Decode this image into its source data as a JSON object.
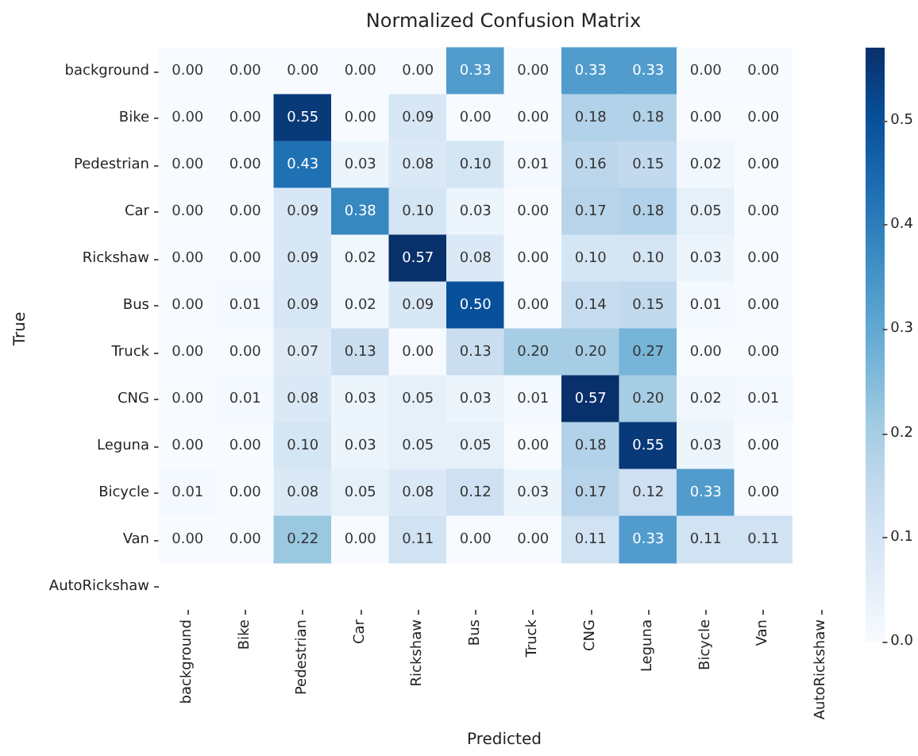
{
  "chart_data": {
    "type": "heatmap",
    "title": "Normalized Confusion Matrix",
    "xlabel": "Predicted",
    "ylabel": "True",
    "categories": [
      "background",
      "Bike",
      "Pedestrian",
      "Car",
      "Rickshaw",
      "Bus",
      "Truck",
      "CNG",
      "Leguna",
      "Bicycle",
      "Van",
      "AutoRickshaw"
    ],
    "y_categories": [
      "background",
      "Bike",
      "Pedestrian",
      "Car",
      "Rickshaw",
      "Bus",
      "Truck",
      "CNG",
      "Leguna",
      "Bicycle",
      "Van",
      "AutoRickshaw"
    ],
    "cells": [
      [
        0,
        0,
        0,
        0,
        0,
        0.33,
        0,
        0.33,
        0.33,
        0,
        0,
        null
      ],
      [
        0,
        0,
        0.55,
        0,
        0.09,
        0,
        0,
        0.18,
        0.18,
        0,
        0,
        null
      ],
      [
        0,
        0,
        0.43,
        0.03,
        0.08,
        0.1,
        0.01,
        0.16,
        0.15,
        0.02,
        0,
        null
      ],
      [
        0,
        0,
        0.09,
        0.38,
        0.1,
        0.03,
        0,
        0.17,
        0.18,
        0.05,
        0,
        null
      ],
      [
        0,
        0,
        0.09,
        0.02,
        0.57,
        0.08,
        0,
        0.1,
        0.1,
        0.03,
        0,
        null
      ],
      [
        0,
        0.01,
        0.09,
        0.02,
        0.09,
        0.5,
        0,
        0.14,
        0.15,
        0.01,
        0,
        null
      ],
      [
        0,
        0,
        0.07,
        0.13,
        0,
        0.13,
        0.2,
        0.2,
        0.27,
        0,
        0,
        null
      ],
      [
        0,
        0.01,
        0.08,
        0.03,
        0.05,
        0.03,
        0.01,
        0.57,
        0.2,
        0.02,
        0.01,
        null
      ],
      [
        0,
        0,
        0.1,
        0.03,
        0.05,
        0.05,
        0,
        0.18,
        0.55,
        0.03,
        0,
        null
      ],
      [
        0.01,
        0,
        0.08,
        0.05,
        0.08,
        0.12,
        0.03,
        0.17,
        0.12,
        0.33,
        0,
        null
      ],
      [
        0,
        0,
        0.22,
        0,
        0.11,
        0,
        0,
        0.11,
        0.33,
        0.11,
        0.11,
        null
      ],
      [
        null,
        null,
        null,
        null,
        null,
        null,
        null,
        null,
        null,
        null,
        null,
        null
      ]
    ],
    "cell_labels": [
      [
        "0.00",
        "0.00",
        "0.00",
        "0.00",
        "0.00",
        "0.33",
        "0.00",
        "0.33",
        "0.33",
        "0.00",
        "0.00",
        null
      ],
      [
        "0.00",
        "0.00",
        "0.55",
        "0.00",
        "0.09",
        "0.00",
        "0.00",
        "0.18",
        "0.18",
        "0.00",
        "0.00",
        null
      ],
      [
        "0.00",
        "0.00",
        "0.43",
        "0.03",
        "0.08",
        "0.10",
        "0.01",
        "0.16",
        "0.15",
        "0.02",
        "0.00",
        null
      ],
      [
        "0.00",
        "0.00",
        "0.09",
        "0.38",
        "0.10",
        "0.03",
        "0.00",
        "0.17",
        "0.18",
        "0.05",
        "0.00",
        null
      ],
      [
        "0.00",
        "0.00",
        "0.09",
        "0.02",
        "0.57",
        "0.08",
        "0.00",
        "0.10",
        "0.10",
        "0.03",
        "0.00",
        null
      ],
      [
        "0.00",
        "0.01",
        "0.09",
        "0.02",
        "0.09",
        "0.50",
        "0.00",
        "0.14",
        "0.15",
        "0.01",
        "0.00",
        null
      ],
      [
        "0.00",
        "0.00",
        "0.07",
        "0.13",
        "0.00",
        "0.13",
        "0.20",
        "0.20",
        "0.27",
        "0.00",
        "0.00",
        null
      ],
      [
        "0.00",
        "0.01",
        "0.08",
        "0.03",
        "0.05",
        "0.03",
        "0.01",
        "0.57",
        "0.20",
        "0.02",
        "0.01",
        null
      ],
      [
        "0.00",
        "0.00",
        "0.10",
        "0.03",
        "0.05",
        "0.05",
        "0.00",
        "0.18",
        "0.55",
        "0.03",
        "0.00",
        null
      ],
      [
        "0.01",
        "0.00",
        "0.08",
        "0.05",
        "0.08",
        "0.12",
        "0.03",
        "0.17",
        "0.12",
        "0.33",
        "0.00",
        null
      ],
      [
        "0.00",
        "0.00",
        "0.22",
        "0.00",
        "0.11",
        "0.00",
        "0.00",
        "0.11",
        "0.33",
        "0.11",
        "0.11",
        null
      ],
      [
        null,
        null,
        null,
        null,
        null,
        null,
        null,
        null,
        null,
        null,
        null,
        null
      ]
    ],
    "clim": [
      0,
      0.57
    ],
    "cticks": [
      {
        "value": 0,
        "label": "0.0"
      },
      {
        "value": 0.1,
        "label": "0.1"
      },
      {
        "value": 0.2,
        "label": "0.2"
      },
      {
        "value": 0.3,
        "label": "0.3"
      },
      {
        "value": 0.4,
        "label": "0.4"
      },
      {
        "value": 0.5,
        "label": "0.5"
      }
    ]
  }
}
